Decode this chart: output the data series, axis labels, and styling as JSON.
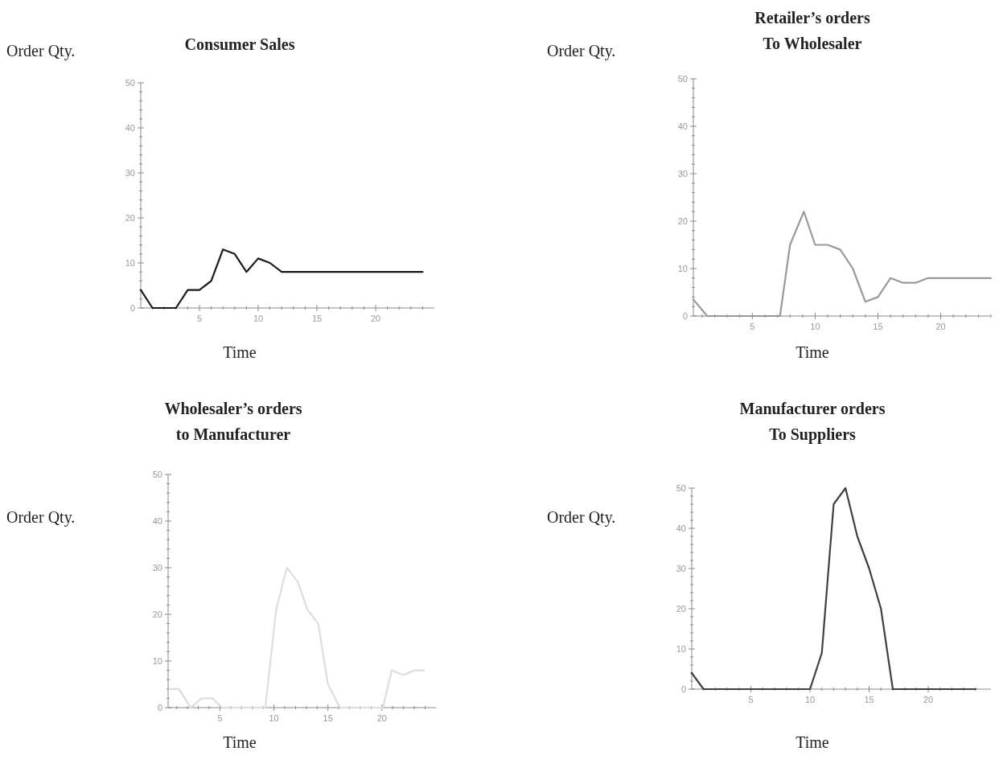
{
  "chart_data": [
    {
      "type": "line",
      "title": "Consumer Sales",
      "xlabel": "Time",
      "ylabel": "Order Qty.",
      "xlim": [
        0,
        25
      ],
      "ylim": [
        0,
        50
      ],
      "xticks": [
        {
          "value": 1,
          "label": null
        },
        {
          "value": 2,
          "label": null
        },
        {
          "value": 3,
          "label": null
        },
        {
          "value": 4,
          "label": null
        },
        5,
        {
          "value": 6,
          "label": null
        },
        {
          "value": 7,
          "label": null
        },
        {
          "value": 8,
          "label": null
        },
        {
          "value": 9,
          "label": null
        },
        10,
        {
          "value": 11,
          "label": null
        },
        {
          "value": 12,
          "label": null
        },
        {
          "value": 13,
          "label": null
        },
        {
          "value": 14,
          "label": null
        },
        15,
        {
          "value": 16,
          "label": null
        },
        {
          "value": 17,
          "label": null
        },
        {
          "value": 18,
          "label": null
        },
        {
          "value": 19,
          "label": null
        },
        20,
        {
          "value": 21,
          "label": null
        },
        {
          "value": 22,
          "label": null
        },
        {
          "value": 23,
          "label": null
        },
        {
          "value": 24,
          "label": null
        }
      ],
      "yticks": [
        0,
        {
          "value": 2,
          "label": null
        },
        {
          "value": 4,
          "label": null
        },
        {
          "value": 6,
          "label": null
        },
        {
          "value": 8,
          "label": null
        },
        10,
        {
          "value": 12,
          "label": null
        },
        {
          "value": 14,
          "label": null
        },
        {
          "value": 16,
          "label": null
        },
        {
          "value": 18,
          "label": null
        },
        20,
        {
          "value": 22,
          "label": null
        },
        {
          "value": 24,
          "label": null
        },
        {
          "value": 26,
          "label": null
        },
        {
          "value": 28,
          "label": null
        },
        30,
        {
          "value": 32,
          "label": null
        },
        {
          "value": 34,
          "label": null
        },
        {
          "value": 36,
          "label": null
        },
        {
          "value": 38,
          "label": null
        },
        40,
        {
          "value": 42,
          "label": null
        },
        {
          "value": 44,
          "label": null
        },
        {
          "value": 46,
          "label": null
        },
        {
          "value": 48,
          "label": null
        },
        50
      ],
      "series": [
        {
          "color": "#1a1a1a",
          "x": [
            0,
            1,
            2,
            3,
            4,
            5,
            6,
            7,
            8,
            9,
            10,
            11,
            12,
            13,
            14,
            15,
            16,
            17,
            18,
            19,
            20,
            21,
            22,
            23,
            24
          ],
          "values": [
            4,
            0,
            0,
            0,
            4,
            4,
            6,
            13,
            12,
            8,
            11,
            10,
            8,
            8,
            8,
            8,
            8,
            8,
            8,
            8,
            8,
            8,
            8,
            8,
            8
          ]
        }
      ]
    },
    {
      "type": "line",
      "title": "Retailer’s orders\nTo Wholesaler",
      "xlabel": "Time",
      "ylabel": "Order Qty.",
      "xlim": [
        0.3,
        24
      ],
      "ylim": [
        0,
        50
      ],
      "xticks": [
        {
          "value": 1,
          "label": null
        },
        {
          "value": 2,
          "label": null
        },
        {
          "value": 3,
          "label": null
        },
        {
          "value": 4,
          "label": null
        },
        5,
        {
          "value": 6,
          "label": null
        },
        {
          "value": 7,
          "label": null
        },
        {
          "value": 8,
          "label": null
        },
        {
          "value": 9,
          "label": null
        },
        10,
        {
          "value": 11,
          "label": null
        },
        {
          "value": 12,
          "label": null
        },
        {
          "value": 13,
          "label": null
        },
        {
          "value": 14,
          "label": null
        },
        15,
        {
          "value": 16,
          "label": null
        },
        {
          "value": 17,
          "label": null
        },
        {
          "value": 18,
          "label": null
        },
        {
          "value": 19,
          "label": null
        },
        20,
        {
          "value": 21,
          "label": null
        },
        {
          "value": 22,
          "label": null
        },
        {
          "value": 23,
          "label": null
        },
        {
          "value": 24,
          "label": null
        }
      ],
      "yticks": [
        0,
        {
          "value": 2,
          "label": null
        },
        {
          "value": 4,
          "label": null
        },
        {
          "value": 6,
          "label": null
        },
        {
          "value": 8,
          "label": null
        },
        10,
        {
          "value": 12,
          "label": null
        },
        {
          "value": 14,
          "label": null
        },
        {
          "value": 16,
          "label": null
        },
        {
          "value": 18,
          "label": null
        },
        20,
        {
          "value": 22,
          "label": null
        },
        {
          "value": 24,
          "label": null
        },
        {
          "value": 26,
          "label": null
        },
        {
          "value": 28,
          "label": null
        },
        30,
        {
          "value": 32,
          "label": null
        },
        {
          "value": 34,
          "label": null
        },
        {
          "value": 36,
          "label": null
        },
        {
          "value": 38,
          "label": null
        },
        40,
        {
          "value": 42,
          "label": null
        },
        {
          "value": 44,
          "label": null
        },
        {
          "value": 46,
          "label": null
        },
        {
          "value": 48,
          "label": null
        },
        50
      ],
      "series": [
        {
          "color": "#999999",
          "x": [
            0.3,
            1.4,
            7.2,
            8,
            9.1,
            10,
            11,
            12,
            13,
            14,
            15,
            16,
            17,
            18,
            19,
            20,
            21,
            22,
            23,
            24
          ],
          "values": [
            3.5,
            0,
            0,
            15,
            22,
            15,
            15,
            14,
            10,
            3,
            4,
            8,
            7,
            7,
            8,
            8,
            8,
            8,
            8,
            8
          ]
        }
      ]
    },
    {
      "type": "line",
      "title": "Wholesaler’s orders\nto Manufacturer",
      "xlabel": "Time",
      "ylabel": "Order Qty.",
      "xlim": [
        0.2,
        25
      ],
      "ylim": [
        0,
        50
      ],
      "xticks": [
        {
          "value": 1,
          "label": null
        },
        {
          "value": 2,
          "label": null
        },
        {
          "value": 3,
          "label": null
        },
        {
          "value": 4,
          "label": null
        },
        5,
        {
          "value": 6,
          "label": null
        },
        {
          "value": 7,
          "label": null
        },
        {
          "value": 8,
          "label": null
        },
        {
          "value": 9,
          "label": null
        },
        10,
        {
          "value": 11,
          "label": null
        },
        {
          "value": 12,
          "label": null
        },
        {
          "value": 13,
          "label": null
        },
        {
          "value": 14,
          "label": null
        },
        15,
        {
          "value": 16,
          "label": null
        },
        {
          "value": 17,
          "label": null
        },
        {
          "value": 18,
          "label": null
        },
        {
          "value": 19,
          "label": null
        },
        20,
        {
          "value": 21,
          "label": null
        },
        {
          "value": 22,
          "label": null
        },
        {
          "value": 23,
          "label": null
        },
        {
          "value": 24,
          "label": null
        }
      ],
      "yticks": [
        0,
        {
          "value": 2,
          "label": null
        },
        {
          "value": 4,
          "label": null
        },
        {
          "value": 6,
          "label": null
        },
        {
          "value": 8,
          "label": null
        },
        10,
        {
          "value": 12,
          "label": null
        },
        {
          "value": 14,
          "label": null
        },
        {
          "value": 16,
          "label": null
        },
        {
          "value": 18,
          "label": null
        },
        20,
        {
          "value": 22,
          "label": null
        },
        {
          "value": 24,
          "label": null
        },
        {
          "value": 26,
          "label": null
        },
        {
          "value": 28,
          "label": null
        },
        30,
        {
          "value": 32,
          "label": null
        },
        {
          "value": 34,
          "label": null
        },
        {
          "value": 36,
          "label": null
        },
        {
          "value": 38,
          "label": null
        },
        40,
        {
          "value": 42,
          "label": null
        },
        {
          "value": 44,
          "label": null
        },
        {
          "value": 46,
          "label": null
        },
        {
          "value": 48,
          "label": null
        },
        50
      ],
      "series": [
        {
          "color": "#dddddd",
          "x": [
            0.3,
            1.2,
            2.3,
            3.3,
            4.3,
            5.2,
            9.2,
            10.2,
            11.2,
            12.2,
            13.1,
            14.1,
            15,
            16.1,
            20.1,
            20.9,
            22,
            23,
            23.9
          ],
          "values": [
            4,
            4,
            0,
            2,
            2,
            0,
            0,
            21,
            30,
            27,
            21,
            18,
            5,
            0,
            0,
            8,
            7,
            8,
            8
          ]
        }
      ]
    },
    {
      "type": "line",
      "title": "Manufacturer orders\nTo Suppliers",
      "xlabel": "Time",
      "ylabel": "Order Qty.",
      "xlim": [
        0,
        25.3
      ],
      "ylim": [
        0,
        50
      ],
      "xticks": [
        {
          "value": 1,
          "label": null
        },
        {
          "value": 2,
          "label": null
        },
        {
          "value": 3,
          "label": null
        },
        {
          "value": 4,
          "label": null
        },
        5,
        {
          "value": 6,
          "label": null
        },
        {
          "value": 7,
          "label": null
        },
        {
          "value": 8,
          "label": null
        },
        {
          "value": 9,
          "label": null
        },
        10,
        {
          "value": 11,
          "label": null
        },
        {
          "value": 12,
          "label": null
        },
        {
          "value": 13,
          "label": null
        },
        {
          "value": 14,
          "label": null
        },
        15,
        {
          "value": 16,
          "label": null
        },
        {
          "value": 17,
          "label": null
        },
        {
          "value": 18,
          "label": null
        },
        {
          "value": 19,
          "label": null
        },
        20,
        {
          "value": 21,
          "label": null
        },
        {
          "value": 22,
          "label": null
        },
        {
          "value": 23,
          "label": null
        },
        {
          "value": 24,
          "label": null
        }
      ],
      "yticks": [
        0,
        {
          "value": 2,
          "label": null
        },
        {
          "value": 4,
          "label": null
        },
        {
          "value": 6,
          "label": null
        },
        {
          "value": 8,
          "label": null
        },
        10,
        {
          "value": 12,
          "label": null
        },
        {
          "value": 14,
          "label": null
        },
        {
          "value": 16,
          "label": null
        },
        {
          "value": 18,
          "label": null
        },
        20,
        {
          "value": 22,
          "label": null
        },
        {
          "value": 24,
          "label": null
        },
        {
          "value": 26,
          "label": null
        },
        {
          "value": 28,
          "label": null
        },
        30,
        {
          "value": 32,
          "label": null
        },
        {
          "value": 34,
          "label": null
        },
        {
          "value": 36,
          "label": null
        },
        {
          "value": 38,
          "label": null
        },
        40,
        {
          "value": 42,
          "label": null
        },
        {
          "value": 44,
          "label": null
        },
        {
          "value": 46,
          "label": null
        },
        {
          "value": 48,
          "label": null
        },
        50
      ],
      "series": [
        {
          "color": "#404040",
          "x": [
            0,
            1,
            10,
            11,
            12,
            13,
            14,
            15,
            16,
            17,
            24
          ],
          "values": [
            4,
            0,
            0,
            9,
            46,
            50,
            38,
            30,
            20,
            0,
            0
          ]
        }
      ]
    }
  ]
}
